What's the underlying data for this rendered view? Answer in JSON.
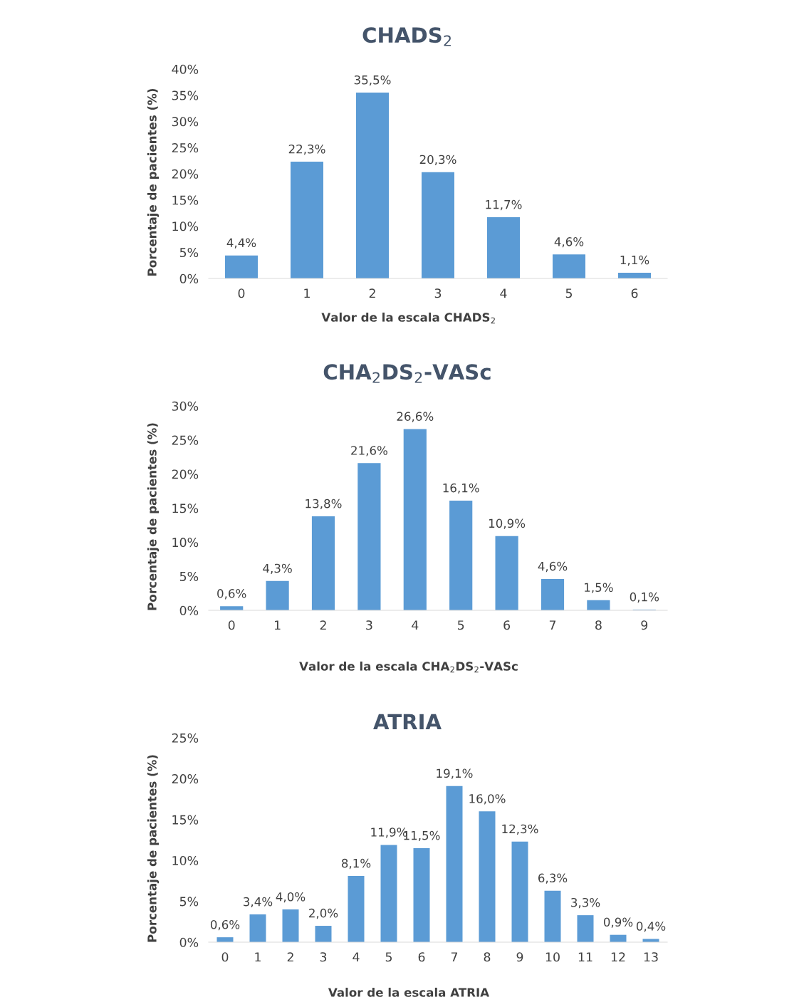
{
  "chart_data": [
    {
      "type": "bar",
      "title": "CHADS$_{2}$",
      "xlabel": "Valor de la escala CHADS$_{2}$",
      "ylabel": "Porcentaje de pacientes (%)",
      "categories": [
        "0",
        "1",
        "2",
        "3",
        "4",
        "5",
        "6"
      ],
      "values": [
        4.4,
        22.3,
        35.5,
        20.3,
        11.7,
        4.6,
        1.1
      ],
      "value_labels": [
        "4,4%",
        "22,3%",
        "35,5%",
        "20,3%",
        "11,7%",
        "4,6%",
        "1,1%"
      ],
      "color": "#5b9bd5",
      "ylim": [
        0,
        40
      ],
      "yticks": [
        {
          "value": 0,
          "label": "0%"
        },
        {
          "value": 5,
          "label": "5%"
        },
        {
          "value": 10,
          "label": "10%"
        },
        {
          "value": 15,
          "label": "15%"
        },
        {
          "value": 20,
          "label": "20%"
        },
        {
          "value": 25,
          "label": "25%"
        },
        {
          "value": 30,
          "label": "30%"
        },
        {
          "value": 35,
          "label": "35%"
        },
        {
          "value": 40,
          "label": "40%"
        }
      ],
      "grid": false,
      "legend": false
    },
    {
      "type": "bar",
      "title": "CHA$_{2}$DS$_{2}$-VASc",
      "xlabel": "Valor de la escala CHA$_{2}$DS$_{2}$-VASc",
      "ylabel": "Porcentaje de pacientes (%)",
      "categories": [
        "0",
        "1",
        "2",
        "3",
        "4",
        "5",
        "6",
        "7",
        "8",
        "9"
      ],
      "values": [
        0.6,
        4.3,
        13.8,
        21.6,
        26.6,
        16.1,
        10.9,
        4.6,
        1.5,
        0.1
      ],
      "value_labels": [
        "0,6%",
        "4,3%",
        "13,8%",
        "21,6%",
        "26,6%",
        "16,1%",
        "10,9%",
        "4,6%",
        "1,5%",
        "0,1%"
      ],
      "color": "#5b9bd5",
      "ylim": [
        0,
        30
      ],
      "yticks": [
        {
          "value": 0,
          "label": "0%"
        },
        {
          "value": 5,
          "label": "5%"
        },
        {
          "value": 10,
          "label": "10%"
        },
        {
          "value": 15,
          "label": "15%"
        },
        {
          "value": 20,
          "label": "20%"
        },
        {
          "value": 25,
          "label": "25%"
        },
        {
          "value": 30,
          "label": "30%"
        }
      ],
      "grid": false,
      "legend": false
    },
    {
      "type": "bar",
      "title": "ATRIA",
      "xlabel": "Valor de la escala ATRIA",
      "ylabel": "Porcentaje de pacientes (%)",
      "categories": [
        "0",
        "1",
        "2",
        "3",
        "4",
        "5",
        "6",
        "7",
        "8",
        "9",
        "10",
        "11",
        "12",
        "13"
      ],
      "values": [
        0.6,
        3.4,
        4.0,
        2.0,
        8.1,
        11.9,
        11.5,
        19.1,
        16.0,
        12.3,
        6.3,
        3.3,
        0.9,
        0.4
      ],
      "value_labels": [
        "0,6%",
        "3,4%",
        "4,0%",
        "2,0%",
        "8,1%",
        "11,9%",
        "11,5%",
        "19,1%",
        "16,0%",
        "12,3%",
        "6,3%",
        "3,3%",
        "0,9%",
        "0,4%"
      ],
      "color": "#5b9bd5",
      "ylim": [
        0,
        25
      ],
      "yticks": [
        {
          "value": 0,
          "label": "0%"
        },
        {
          "value": 5,
          "label": "5%"
        },
        {
          "value": 10,
          "label": "10%"
        },
        {
          "value": 15,
          "label": "15%"
        },
        {
          "value": 20,
          "label": "20%"
        },
        {
          "value": 25,
          "label": "25%"
        }
      ],
      "grid": false,
      "legend": false
    }
  ]
}
